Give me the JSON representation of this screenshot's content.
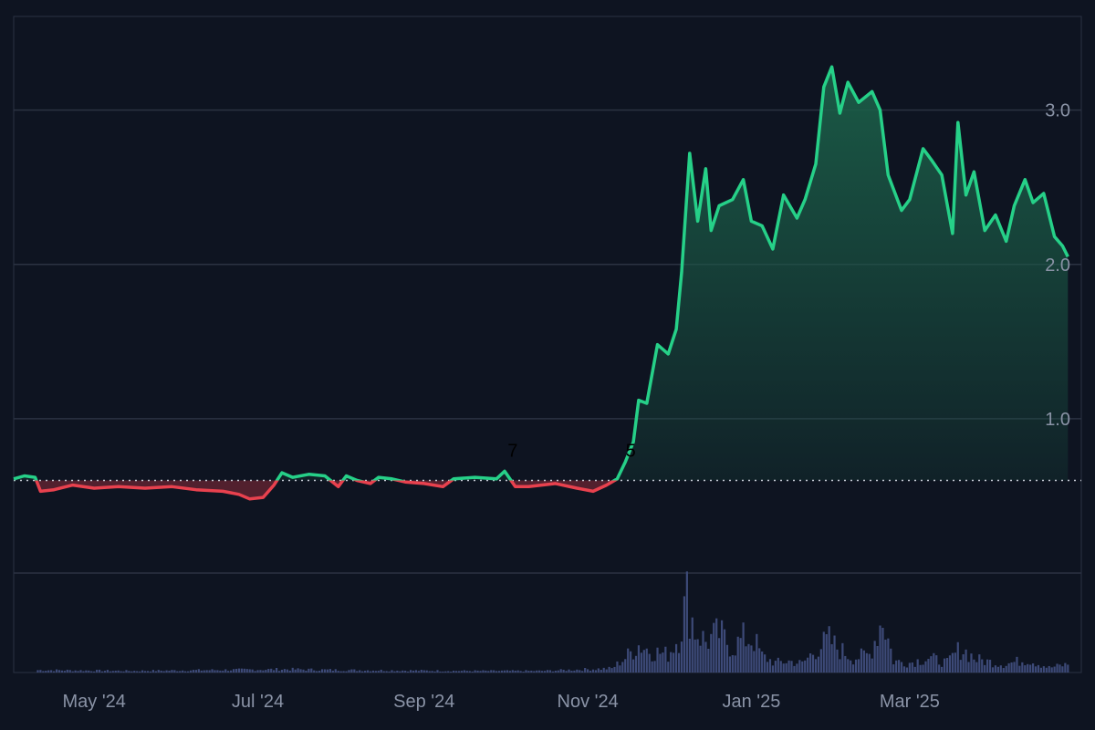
{
  "theme": {
    "background": "#0e1421",
    "frame": "#2b3242",
    "grid": "#2b3242",
    "up_color": "#26d088",
    "down_color": "#e8414e",
    "up_fill_top": "#1b5e48",
    "down_fill": "#5e2230",
    "baseline_color": "#c9ced8",
    "volume_color": "#3d4a78"
  },
  "chart_data": {
    "type": "area",
    "x_start": "2024-04-01",
    "x_end": "2025-04-07",
    "ylim": [
      0.0,
      3.4
    ],
    "baseline": 0.6,
    "grid": true,
    "yticks": [
      {
        "value": 3.0,
        "label": "3.0"
      },
      {
        "value": 2.0,
        "label": "2.0"
      },
      {
        "value": 1.0,
        "label": "1.0"
      }
    ],
    "xticks": [
      {
        "date": "2024-05-01",
        "label": "May '24"
      },
      {
        "date": "2024-07-01",
        "label": "Jul '24"
      },
      {
        "date": "2024-09-01",
        "label": "Sep '24"
      },
      {
        "date": "2024-11-01",
        "label": "Nov '24"
      },
      {
        "date": "2025-01-01",
        "label": "Jan '25"
      },
      {
        "date": "2025-03-01",
        "label": "Mar '25"
      }
    ],
    "markers": [
      {
        "date": "2024-10-04",
        "label": "7"
      },
      {
        "date": "2024-11-17",
        "label": "5"
      }
    ],
    "series": [
      {
        "points": [
          [
            "2024-04-01",
            0.61
          ],
          [
            "2024-04-05",
            0.63
          ],
          [
            "2024-04-09",
            0.62
          ],
          [
            "2024-04-11",
            0.53
          ],
          [
            "2024-04-16",
            0.54
          ],
          [
            "2024-04-23",
            0.57
          ],
          [
            "2024-05-01",
            0.55
          ],
          [
            "2024-05-10",
            0.56
          ],
          [
            "2024-05-20",
            0.55
          ],
          [
            "2024-05-30",
            0.56
          ],
          [
            "2024-06-08",
            0.54
          ],
          [
            "2024-06-18",
            0.53
          ],
          [
            "2024-06-24",
            0.51
          ],
          [
            "2024-06-28",
            0.48
          ],
          [
            "2024-07-03",
            0.49
          ],
          [
            "2024-07-07",
            0.57
          ],
          [
            "2024-07-10",
            0.65
          ],
          [
            "2024-07-14",
            0.62
          ],
          [
            "2024-07-20",
            0.64
          ],
          [
            "2024-07-26",
            0.63
          ],
          [
            "2024-07-31",
            0.56
          ],
          [
            "2024-08-03",
            0.63
          ],
          [
            "2024-08-07",
            0.6
          ],
          [
            "2024-08-12",
            0.58
          ],
          [
            "2024-08-15",
            0.62
          ],
          [
            "2024-08-20",
            0.61
          ],
          [
            "2024-08-25",
            0.59
          ],
          [
            "2024-09-01",
            0.58
          ],
          [
            "2024-09-08",
            0.56
          ],
          [
            "2024-09-12",
            0.61
          ],
          [
            "2024-09-20",
            0.62
          ],
          [
            "2024-09-28",
            0.61
          ],
          [
            "2024-10-01",
            0.66
          ],
          [
            "2024-10-05",
            0.56
          ],
          [
            "2024-10-10",
            0.56
          ],
          [
            "2024-10-20",
            0.58
          ],
          [
            "2024-10-28",
            0.55
          ],
          [
            "2024-11-03",
            0.53
          ],
          [
            "2024-11-08",
            0.57
          ],
          [
            "2024-11-12",
            0.61
          ],
          [
            "2024-11-15",
            0.72
          ],
          [
            "2024-11-18",
            0.85
          ],
          [
            "2024-11-20",
            1.12
          ],
          [
            "2024-11-23",
            1.1
          ],
          [
            "2024-11-27",
            1.48
          ],
          [
            "2024-12-01",
            1.42
          ],
          [
            "2024-12-04",
            1.58
          ],
          [
            "2024-12-06",
            1.95
          ],
          [
            "2024-12-09",
            2.72
          ],
          [
            "2024-12-12",
            2.28
          ],
          [
            "2024-12-15",
            2.62
          ],
          [
            "2024-12-17",
            2.22
          ],
          [
            "2024-12-20",
            2.38
          ],
          [
            "2024-12-25",
            2.42
          ],
          [
            "2024-12-29",
            2.55
          ],
          [
            "2025-01-01",
            2.28
          ],
          [
            "2025-01-05",
            2.25
          ],
          [
            "2025-01-09",
            2.1
          ],
          [
            "2025-01-13",
            2.45
          ],
          [
            "2025-01-18",
            2.3
          ],
          [
            "2025-01-21",
            2.42
          ],
          [
            "2025-01-25",
            2.65
          ],
          [
            "2025-01-28",
            3.15
          ],
          [
            "2025-01-31",
            3.28
          ],
          [
            "2025-02-03",
            2.98
          ],
          [
            "2025-02-06",
            3.18
          ],
          [
            "2025-02-10",
            3.05
          ],
          [
            "2025-02-15",
            3.12
          ],
          [
            "2025-02-18",
            3.0
          ],
          [
            "2025-02-21",
            2.58
          ],
          [
            "2025-02-26",
            2.35
          ],
          [
            "2025-03-01",
            2.42
          ],
          [
            "2025-03-06",
            2.75
          ],
          [
            "2025-03-09",
            2.68
          ],
          [
            "2025-03-13",
            2.58
          ],
          [
            "2025-03-17",
            2.2
          ],
          [
            "2025-03-19",
            2.92
          ],
          [
            "2025-03-22",
            2.45
          ],
          [
            "2025-03-25",
            2.6
          ],
          [
            "2025-03-29",
            2.22
          ],
          [
            "2025-04-02",
            2.32
          ],
          [
            "2025-04-06",
            2.15
          ],
          [
            "2025-04-09",
            2.38
          ],
          [
            "2025-04-13",
            2.55
          ],
          [
            "2025-04-16",
            2.4
          ],
          [
            "2025-04-20",
            2.46
          ],
          [
            "2025-04-24",
            2.18
          ],
          [
            "2025-04-27",
            2.12
          ],
          [
            "2025-04-29",
            2.05
          ]
        ]
      }
    ],
    "volume": {
      "ylim": [
        0,
        100
      ],
      "points": [
        [
          "2024-04-10",
          3
        ],
        [
          "2024-05-15",
          2
        ],
        [
          "2024-07-12",
          4
        ],
        [
          "2024-08-01",
          3
        ],
        [
          "2024-09-15",
          2
        ],
        [
          "2024-10-15",
          2
        ],
        [
          "2024-11-10",
          5
        ],
        [
          "2024-11-15",
          18
        ],
        [
          "2024-11-20",
          34
        ],
        [
          "2024-11-25",
          26
        ],
        [
          "2024-12-01",
          22
        ],
        [
          "2024-12-05",
          45
        ],
        [
          "2024-12-08",
          92
        ],
        [
          "2024-12-11",
          52
        ],
        [
          "2024-12-15",
          38
        ],
        [
          "2024-12-20",
          48
        ],
        [
          "2024-12-25",
          30
        ],
        [
          "2024-12-29",
          42
        ],
        [
          "2025-01-02",
          40
        ],
        [
          "2025-01-05",
          20
        ],
        [
          "2025-01-10",
          12
        ],
        [
          "2025-01-15",
          14
        ],
        [
          "2025-01-20",
          11
        ],
        [
          "2025-01-25",
          28
        ],
        [
          "2025-01-30",
          40
        ],
        [
          "2025-02-02",
          30
        ],
        [
          "2025-02-08",
          18
        ],
        [
          "2025-02-14",
          22
        ],
        [
          "2025-02-19",
          68
        ],
        [
          "2025-02-23",
          14
        ],
        [
          "2025-03-01",
          12
        ],
        [
          "2025-03-08",
          18
        ],
        [
          "2025-03-15",
          12
        ],
        [
          "2025-03-20",
          30
        ],
        [
          "2025-03-26",
          16
        ],
        [
          "2025-04-05",
          10
        ],
        [
          "2025-04-14",
          16
        ],
        [
          "2025-04-22",
          6
        ],
        [
          "2025-04-29",
          10
        ]
      ]
    }
  }
}
